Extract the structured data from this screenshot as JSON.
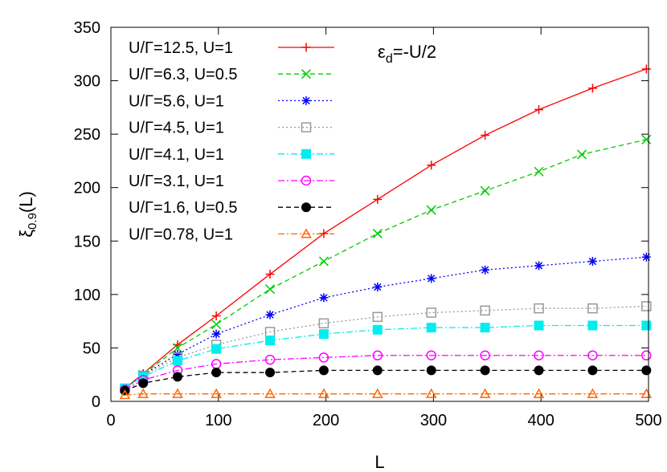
{
  "chart_data": {
    "type": "line",
    "xlabel": "L",
    "ylabel": {
      "main": "ξ",
      "sub": "0.9",
      "suffix": "(L)"
    },
    "annotation": {
      "main": "ε",
      "sub": "d",
      "suffix": "=-U/2"
    },
    "xlim": [
      0,
      500
    ],
    "ylim": [
      0,
      350
    ],
    "xticks": [
      0,
      100,
      200,
      300,
      400,
      500
    ],
    "yticks": [
      0,
      50,
      100,
      150,
      200,
      250,
      300,
      350
    ],
    "legend_position": "top-left",
    "x": [
      13,
      30,
      62,
      98,
      148,
      198,
      248,
      298,
      348,
      398,
      448,
      498
    ],
    "series": [
      {
        "name": "U/Γ=12.5, U=1",
        "color": "#ff0000",
        "dash": "solid",
        "marker": "plus",
        "values": [
          12,
          26,
          53,
          80,
          119,
          157,
          189,
          221,
          249,
          273,
          293,
          311
        ]
      },
      {
        "name": "U/Γ=6.3, U=0.5",
        "color": "#00cc00",
        "dash": "dashed",
        "marker": "cross",
        "x": [
          13,
          30,
          62,
          98,
          148,
          198,
          248,
          298,
          348,
          398,
          438,
          498
        ],
        "values": [
          12,
          25,
          50,
          72,
          105,
          131,
          157,
          179,
          197,
          215,
          231,
          245
        ]
      },
      {
        "name": "U/Γ=5.6, U=1",
        "color": "#0000ff",
        "dash": "dotted",
        "marker": "star",
        "values": [
          12,
          25,
          44,
          63,
          81,
          97,
          107,
          115,
          123,
          127,
          131,
          135
        ]
      },
      {
        "name": "U/Γ=4.5, U=1",
        "color": "#999999",
        "dash": "dotted",
        "marker": "open-square",
        "values": [
          12,
          24,
          41,
          53,
          65,
          73,
          79,
          83,
          85,
          87,
          87,
          89
        ]
      },
      {
        "name": "U/Γ=4.1, U=1",
        "color": "#00eeee",
        "dash": "dashdot",
        "marker": "filled-square",
        "values": [
          12,
          23,
          38,
          49,
          57,
          63,
          67,
          69,
          69,
          71,
          71,
          71
        ]
      },
      {
        "name": "U/Γ=3.1, U=1",
        "color": "#ff00ff",
        "dash": "dashdot",
        "marker": "open-circle",
        "values": [
          11,
          20,
          29,
          35,
          39,
          41,
          43,
          43,
          43,
          43,
          43,
          43
        ]
      },
      {
        "name": "U/Γ=1.6, U=0.5",
        "color": "#000000",
        "dash": "dashed",
        "marker": "filled-circle",
        "values": [
          10,
          17,
          23,
          27,
          27,
          29,
          29,
          29,
          29,
          29,
          29,
          29
        ]
      },
      {
        "name": "U/Γ=0.78, U=1",
        "color": "#ff6600",
        "dash": "dashdot",
        "marker": "open-triangle",
        "values": [
          6,
          7,
          7,
          7,
          7,
          7,
          7,
          7,
          7,
          7,
          7,
          7
        ]
      }
    ]
  }
}
